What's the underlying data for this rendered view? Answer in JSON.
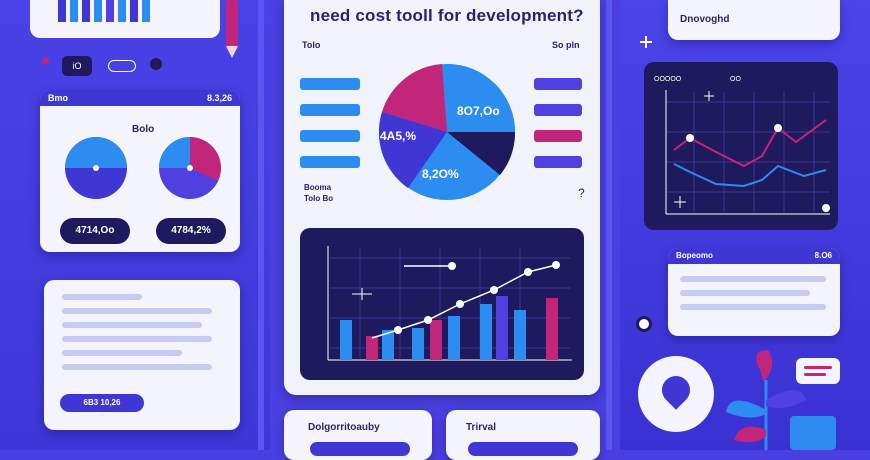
{
  "header": {
    "title": "need cost tooll for development?"
  },
  "center_card": {
    "label_left": "Tolo",
    "label_right": "So pln"
  },
  "pie_main": {
    "label_top": "8O7,Oo",
    "label_left": "4A5,%",
    "label_bottom": "8,2O%"
  },
  "legend_bottom": {
    "line1": "Booma",
    "line2": "Tolo Bo"
  },
  "left_card": {
    "header_left": "Bmo",
    "header_right": "8.3,26",
    "title": "Bolo",
    "pill1": "4714,Oo",
    "pill2": "4784,2%"
  },
  "left_bottom": {
    "pill": "6B3 10,26"
  },
  "right_top_card": {
    "title": "Dnovoghd"
  },
  "right_chart": {
    "label_left": "OOOOO",
    "label_mid": "OO"
  },
  "right_card2": {
    "header_left": "Bopeomo",
    "header_right": "8.O6"
  },
  "bottom_cards": {
    "card1_title": "Dolgorritoauby",
    "card2_title": "Trirval"
  },
  "small_icons": {
    "label": "iO"
  },
  "colors": {
    "blue": "#2d8cf0",
    "magenta": "#c2267a",
    "navy": "#1f1a5e",
    "purple": "#5140e0"
  }
}
